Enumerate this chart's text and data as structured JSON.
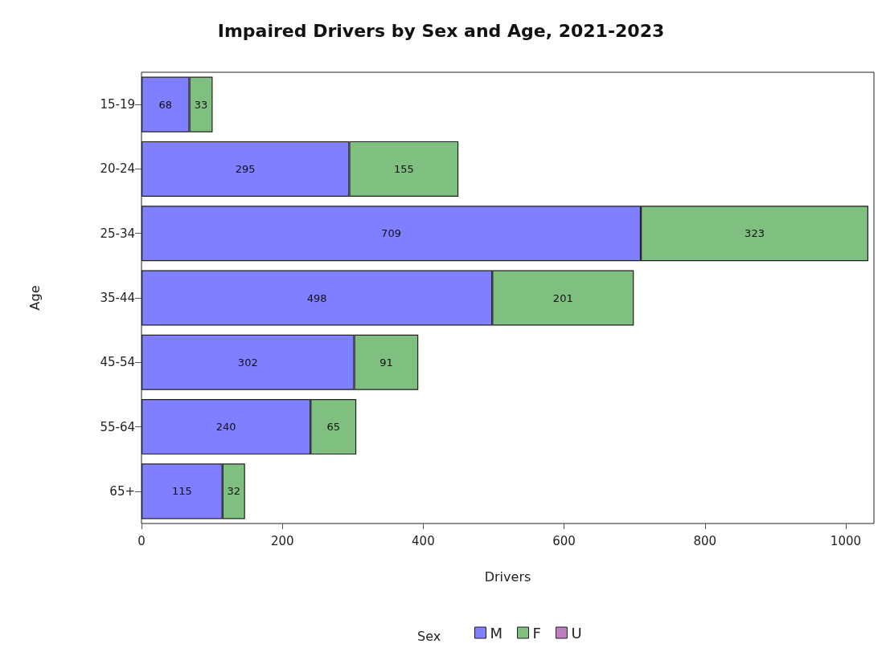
{
  "chart_data": {
    "type": "bar",
    "title": "Impaired Drivers by Sex and Age, 2021-2023",
    "xlabel": "Drivers",
    "ylabel": "Age",
    "legend_title": "Sex",
    "categories": [
      "15-19",
      "20-24",
      "25-34",
      "35-44",
      "45-54",
      "55-64",
      "65+"
    ],
    "orientation": "horizontal",
    "stacked": true,
    "data_labels": true,
    "legend": "bottom",
    "grid": false,
    "xlim": [
      0,
      1040
    ],
    "xticks": [
      0,
      200,
      400,
      600,
      800,
      1000
    ],
    "series": [
      {
        "name": "M",
        "color": "#7f7fff",
        "values": [
          68,
          295,
          709,
          498,
          302,
          240,
          115
        ]
      },
      {
        "name": "F",
        "color": "#7fbf7f",
        "values": [
          33,
          155,
          323,
          201,
          91,
          65,
          32
        ]
      },
      {
        "name": "U",
        "color": "#bf7fbf",
        "values": [
          null,
          null,
          null,
          null,
          null,
          null,
          null
        ]
      }
    ]
  }
}
